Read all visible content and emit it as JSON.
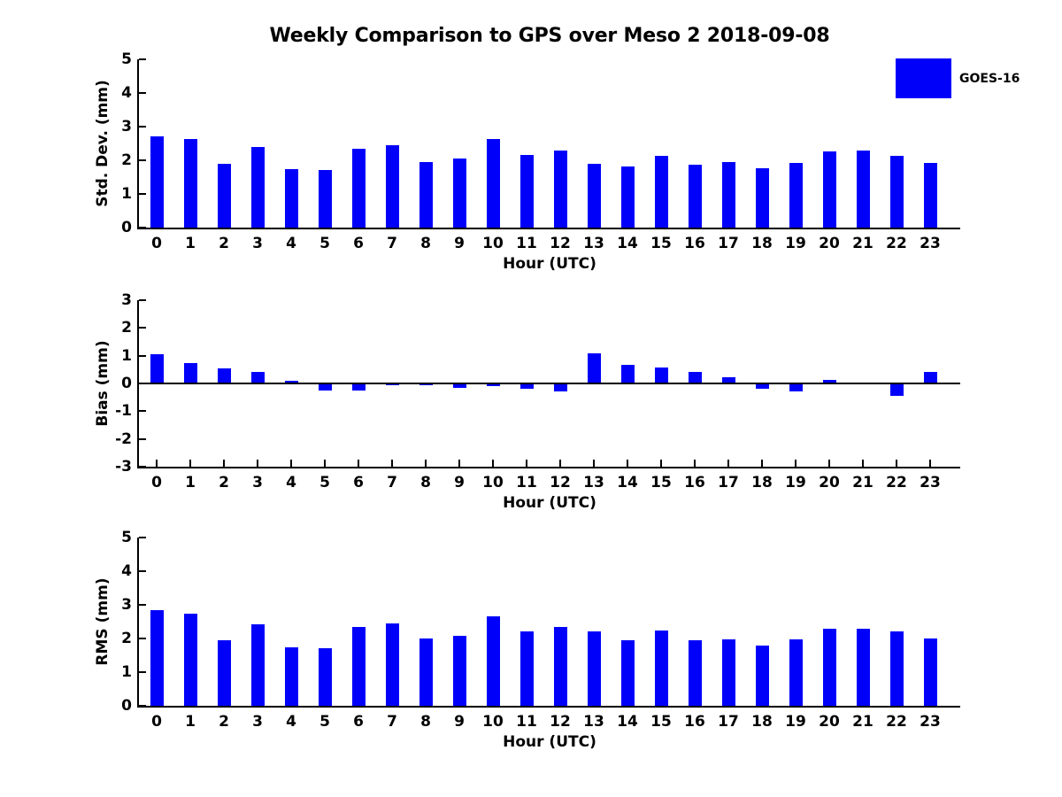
{
  "figure": {
    "title": "Weekly Comparison to GPS over Meso 2 2018-09-08"
  },
  "legend": {
    "label": "GOES-16",
    "color": "#0000fa"
  },
  "chart_data": [
    {
      "id": "std_dev",
      "type": "bar",
      "ylabel": "Std. Dev. (mm)",
      "xlabel": "Hour (UTC)",
      "ylim": [
        0,
        5
      ],
      "yticks": [
        0,
        1,
        2,
        3,
        4,
        5
      ],
      "categories": [
        "0",
        "1",
        "2",
        "3",
        "4",
        "5",
        "6",
        "7",
        "8",
        "9",
        "10",
        "11",
        "12",
        "13",
        "14",
        "15",
        "16",
        "17",
        "18",
        "19",
        "20",
        "21",
        "22",
        "23"
      ],
      "series": [
        {
          "name": "GOES-16",
          "values": [
            2.7,
            2.64,
            1.89,
            2.4,
            1.75,
            1.7,
            2.33,
            2.46,
            1.96,
            2.05,
            2.64,
            2.17,
            2.29,
            1.89,
            1.82,
            2.12,
            1.88,
            1.96,
            1.77,
            1.93,
            2.26,
            2.3,
            2.13,
            1.93
          ]
        }
      ],
      "grid": false,
      "legend_position": "top-right"
    },
    {
      "id": "bias",
      "type": "bar",
      "ylabel": "Bias (mm)",
      "xlabel": "Hour (UTC)",
      "ylim": [
        -3,
        3
      ],
      "yticks": [
        -3,
        -2,
        -1,
        0,
        1,
        2,
        3
      ],
      "categories": [
        "0",
        "1",
        "2",
        "3",
        "4",
        "5",
        "6",
        "7",
        "8",
        "9",
        "10",
        "11",
        "12",
        "13",
        "14",
        "15",
        "16",
        "17",
        "18",
        "19",
        "20",
        "21",
        "22",
        "23"
      ],
      "series": [
        {
          "name": "GOES-16",
          "values": [
            1.05,
            0.72,
            0.55,
            0.43,
            0.1,
            -0.24,
            -0.27,
            -0.05,
            -0.05,
            -0.15,
            -0.11,
            -0.18,
            -0.28,
            1.08,
            0.67,
            0.57,
            0.43,
            0.22,
            -0.2,
            -0.3,
            0.13,
            -0.02,
            -0.45,
            0.4
          ]
        }
      ],
      "grid": false
    },
    {
      "id": "rms",
      "type": "bar",
      "ylabel": "RMS (mm)",
      "xlabel": "Hour (UTC)",
      "ylim": [
        0,
        5
      ],
      "yticks": [
        0,
        1,
        2,
        3,
        4,
        5
      ],
      "categories": [
        "0",
        "1",
        "2",
        "3",
        "4",
        "5",
        "6",
        "7",
        "8",
        "9",
        "10",
        "11",
        "12",
        "13",
        "14",
        "15",
        "16",
        "17",
        "18",
        "19",
        "20",
        "21",
        "22",
        "23"
      ],
      "series": [
        {
          "name": "GOES-16",
          "values": [
            2.85,
            2.74,
            1.95,
            2.41,
            1.73,
            1.71,
            2.33,
            2.44,
            2.0,
            2.07,
            2.65,
            2.2,
            2.33,
            2.22,
            1.96,
            2.24,
            1.95,
            1.97,
            1.79,
            1.97,
            2.29,
            2.29,
            2.2,
            1.99
          ]
        }
      ],
      "grid": false
    }
  ]
}
